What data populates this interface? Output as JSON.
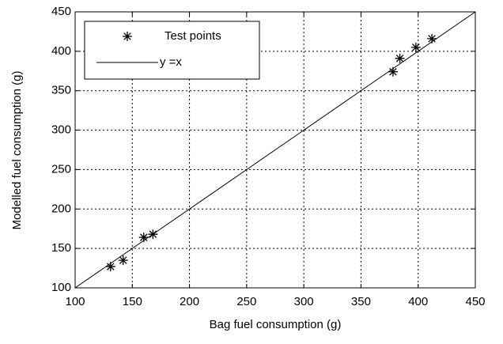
{
  "chart_data": {
    "type": "scatter",
    "xlabel": "Bag fuel consumption (g)",
    "ylabel": "Modelled fuel consumption (g)",
    "xlim": [
      100,
      450
    ],
    "ylim": [
      100,
      450
    ],
    "xticks": [
      100,
      150,
      200,
      250,
      300,
      350,
      400,
      450
    ],
    "yticks": [
      100,
      150,
      200,
      250,
      300,
      350,
      400,
      450
    ],
    "grid": true,
    "legend": "upper left",
    "series": [
      {
        "name": "Test points",
        "color": "#000000",
        "style": "markers",
        "x": [
          131,
          142,
          160,
          168,
          378,
          384,
          398,
          412
        ],
        "y": [
          127,
          135,
          164,
          168,
          374,
          391,
          405,
          416
        ]
      },
      {
        "name": "y =x",
        "color": "#000000",
        "style": "line",
        "x": [
          100,
          450
        ],
        "y": [
          100,
          450
        ]
      }
    ]
  }
}
